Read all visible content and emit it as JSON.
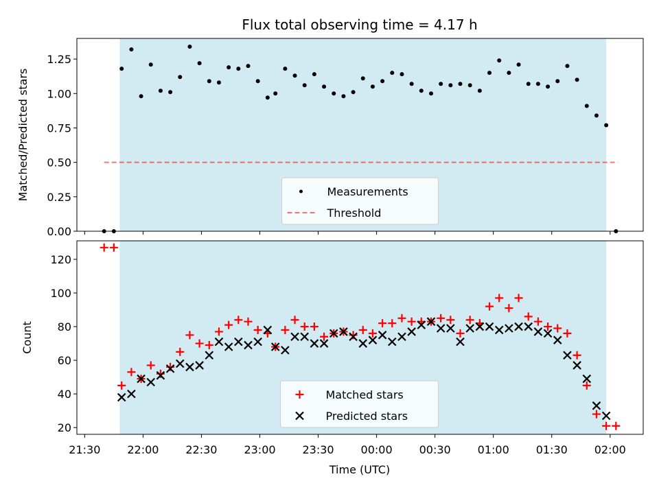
{
  "title": "Flux total observing time = 4.17 h",
  "xlabel": "Time (UTC)",
  "colors": {
    "band": "#add8e6",
    "matched": "#ff0000",
    "predicted": "#000000",
    "measurement": "#000000",
    "threshold": "#ff0000"
  },
  "chart_data": [
    {
      "type": "scatter",
      "ylabel": "Matched/Predicted stars",
      "ylim": [
        0,
        1.4
      ],
      "yticks": [
        0.0,
        0.25,
        0.5,
        0.75,
        1.0,
        1.25
      ],
      "ytick_labels": [
        "0.00",
        "0.25",
        "0.50",
        "0.75",
        "1.00",
        "1.25"
      ],
      "xlim": [
        "21:26",
        "02:17"
      ],
      "observing_window": [
        "21:48",
        "01:58"
      ],
      "legend": {
        "placement": "lower center",
        "items": [
          {
            "label": "Measurements",
            "marker": "dot"
          },
          {
            "label": "Threshold",
            "marker": "dashed-line"
          }
        ]
      },
      "threshold": {
        "y": 0.5,
        "x_start": "21:40",
        "x_end": "02:04"
      },
      "series": [
        {
          "name": "Measurements",
          "x": [
            "21:40",
            "21:45",
            "21:49",
            "21:54",
            "21:59",
            "22:04",
            "22:09",
            "22:14",
            "22:19",
            "22:24",
            "22:29",
            "22:34",
            "22:39",
            "22:44",
            "22:49",
            "22:54",
            "22:59",
            "23:04",
            "23:08",
            "23:13",
            "23:18",
            "23:23",
            "23:28",
            "23:33",
            "23:38",
            "23:43",
            "23:48",
            "23:53",
            "23:58",
            "00:03",
            "00:08",
            "00:13",
            "00:18",
            "00:23",
            "00:28",
            "00:33",
            "00:38",
            "00:43",
            "00:48",
            "00:53",
            "00:58",
            "01:03",
            "01:08",
            "01:13",
            "01:18",
            "01:23",
            "01:28",
            "01:33",
            "01:38",
            "01:43",
            "01:48",
            "01:53",
            "01:58",
            "02:03"
          ],
          "y": [
            0.0,
            0.0,
            1.18,
            1.32,
            0.98,
            1.21,
            1.02,
            1.01,
            1.12,
            1.34,
            1.22,
            1.09,
            1.08,
            1.19,
            1.18,
            1.2,
            1.09,
            0.97,
            1.0,
            1.18,
            1.13,
            1.06,
            1.14,
            1.05,
            1.0,
            0.98,
            1.01,
            1.11,
            1.05,
            1.09,
            1.15,
            1.14,
            1.07,
            1.02,
            1.0,
            1.07,
            1.06,
            1.07,
            1.06,
            1.02,
            1.15,
            1.24,
            1.15,
            1.21,
            1.07,
            1.07,
            1.05,
            1.09,
            1.2,
            1.1,
            0.91,
            0.84,
            0.77,
            0.0
          ]
        }
      ]
    },
    {
      "type": "scatter",
      "ylabel": "Count",
      "ylim": [
        16,
        131
      ],
      "yticks": [
        20,
        40,
        60,
        80,
        100,
        120
      ],
      "ytick_labels": [
        "20",
        "40",
        "60",
        "80",
        "100",
        "120"
      ],
      "xlim": [
        "21:26",
        "02:17"
      ],
      "xticks": [
        "21:30",
        "22:00",
        "22:30",
        "23:00",
        "23:30",
        "00:00",
        "00:30",
        "01:00",
        "01:30",
        "02:00"
      ],
      "observing_window": [
        "21:48",
        "01:58"
      ],
      "legend": {
        "placement": "lower center",
        "items": [
          {
            "label": "Matched stars",
            "marker": "plus"
          },
          {
            "label": "Predicted stars",
            "marker": "x"
          }
        ]
      },
      "series": [
        {
          "name": "Matched stars",
          "x": [
            "21:40",
            "21:45",
            "21:49",
            "21:54",
            "21:59",
            "22:04",
            "22:09",
            "22:14",
            "22:19",
            "22:24",
            "22:29",
            "22:34",
            "22:39",
            "22:44",
            "22:49",
            "22:54",
            "22:59",
            "23:04",
            "23:08",
            "23:13",
            "23:18",
            "23:23",
            "23:28",
            "23:33",
            "23:38",
            "23:43",
            "23:48",
            "23:53",
            "23:58",
            "00:03",
            "00:08",
            "00:13",
            "00:18",
            "00:23",
            "00:28",
            "00:33",
            "00:38",
            "00:43",
            "00:48",
            "00:53",
            "00:58",
            "01:03",
            "01:08",
            "01:13",
            "01:18",
            "01:23",
            "01:28",
            "01:33",
            "01:38",
            "01:43",
            "01:48",
            "01:53",
            "01:58",
            "02:03"
          ],
          "y": [
            127,
            127,
            45,
            53,
            49,
            57,
            52,
            56,
            65,
            75,
            70,
            69,
            77,
            81,
            84,
            83,
            78,
            76,
            68,
            78,
            84,
            80,
            80,
            74,
            76,
            77,
            75,
            78,
            76,
            82,
            82,
            85,
            83,
            83,
            83,
            85,
            84,
            76,
            84,
            82,
            92,
            97,
            91,
            97,
            86,
            83,
            80,
            79,
            76,
            63,
            45,
            28,
            21,
            21
          ]
        },
        {
          "name": "Predicted stars",
          "x": [
            "21:49",
            "21:54",
            "21:59",
            "22:04",
            "22:09",
            "22:14",
            "22:19",
            "22:24",
            "22:29",
            "22:34",
            "22:39",
            "22:44",
            "22:49",
            "22:54",
            "22:59",
            "23:04",
            "23:08",
            "23:13",
            "23:18",
            "23:23",
            "23:28",
            "23:33",
            "23:38",
            "23:43",
            "23:48",
            "23:53",
            "23:58",
            "00:03",
            "00:08",
            "00:13",
            "00:18",
            "00:23",
            "00:28",
            "00:33",
            "00:38",
            "00:43",
            "00:48",
            "00:53",
            "00:58",
            "01:03",
            "01:08",
            "01:13",
            "01:18",
            "01:23",
            "01:28",
            "01:33",
            "01:38",
            "01:43",
            "01:48",
            "01:53",
            "01:58"
          ],
          "y": [
            38,
            40,
            49,
            47,
            51,
            55,
            58,
            56,
            57,
            63,
            71,
            68,
            71,
            69,
            71,
            78,
            68,
            66,
            74,
            74,
            70,
            70,
            76,
            77,
            74,
            70,
            72,
            75,
            71,
            74,
            77,
            81,
            83,
            79,
            79,
            71,
            79,
            80,
            80,
            78,
            79,
            80,
            80,
            77,
            76,
            72,
            63,
            57,
            49,
            33,
            27
          ]
        }
      ]
    }
  ]
}
